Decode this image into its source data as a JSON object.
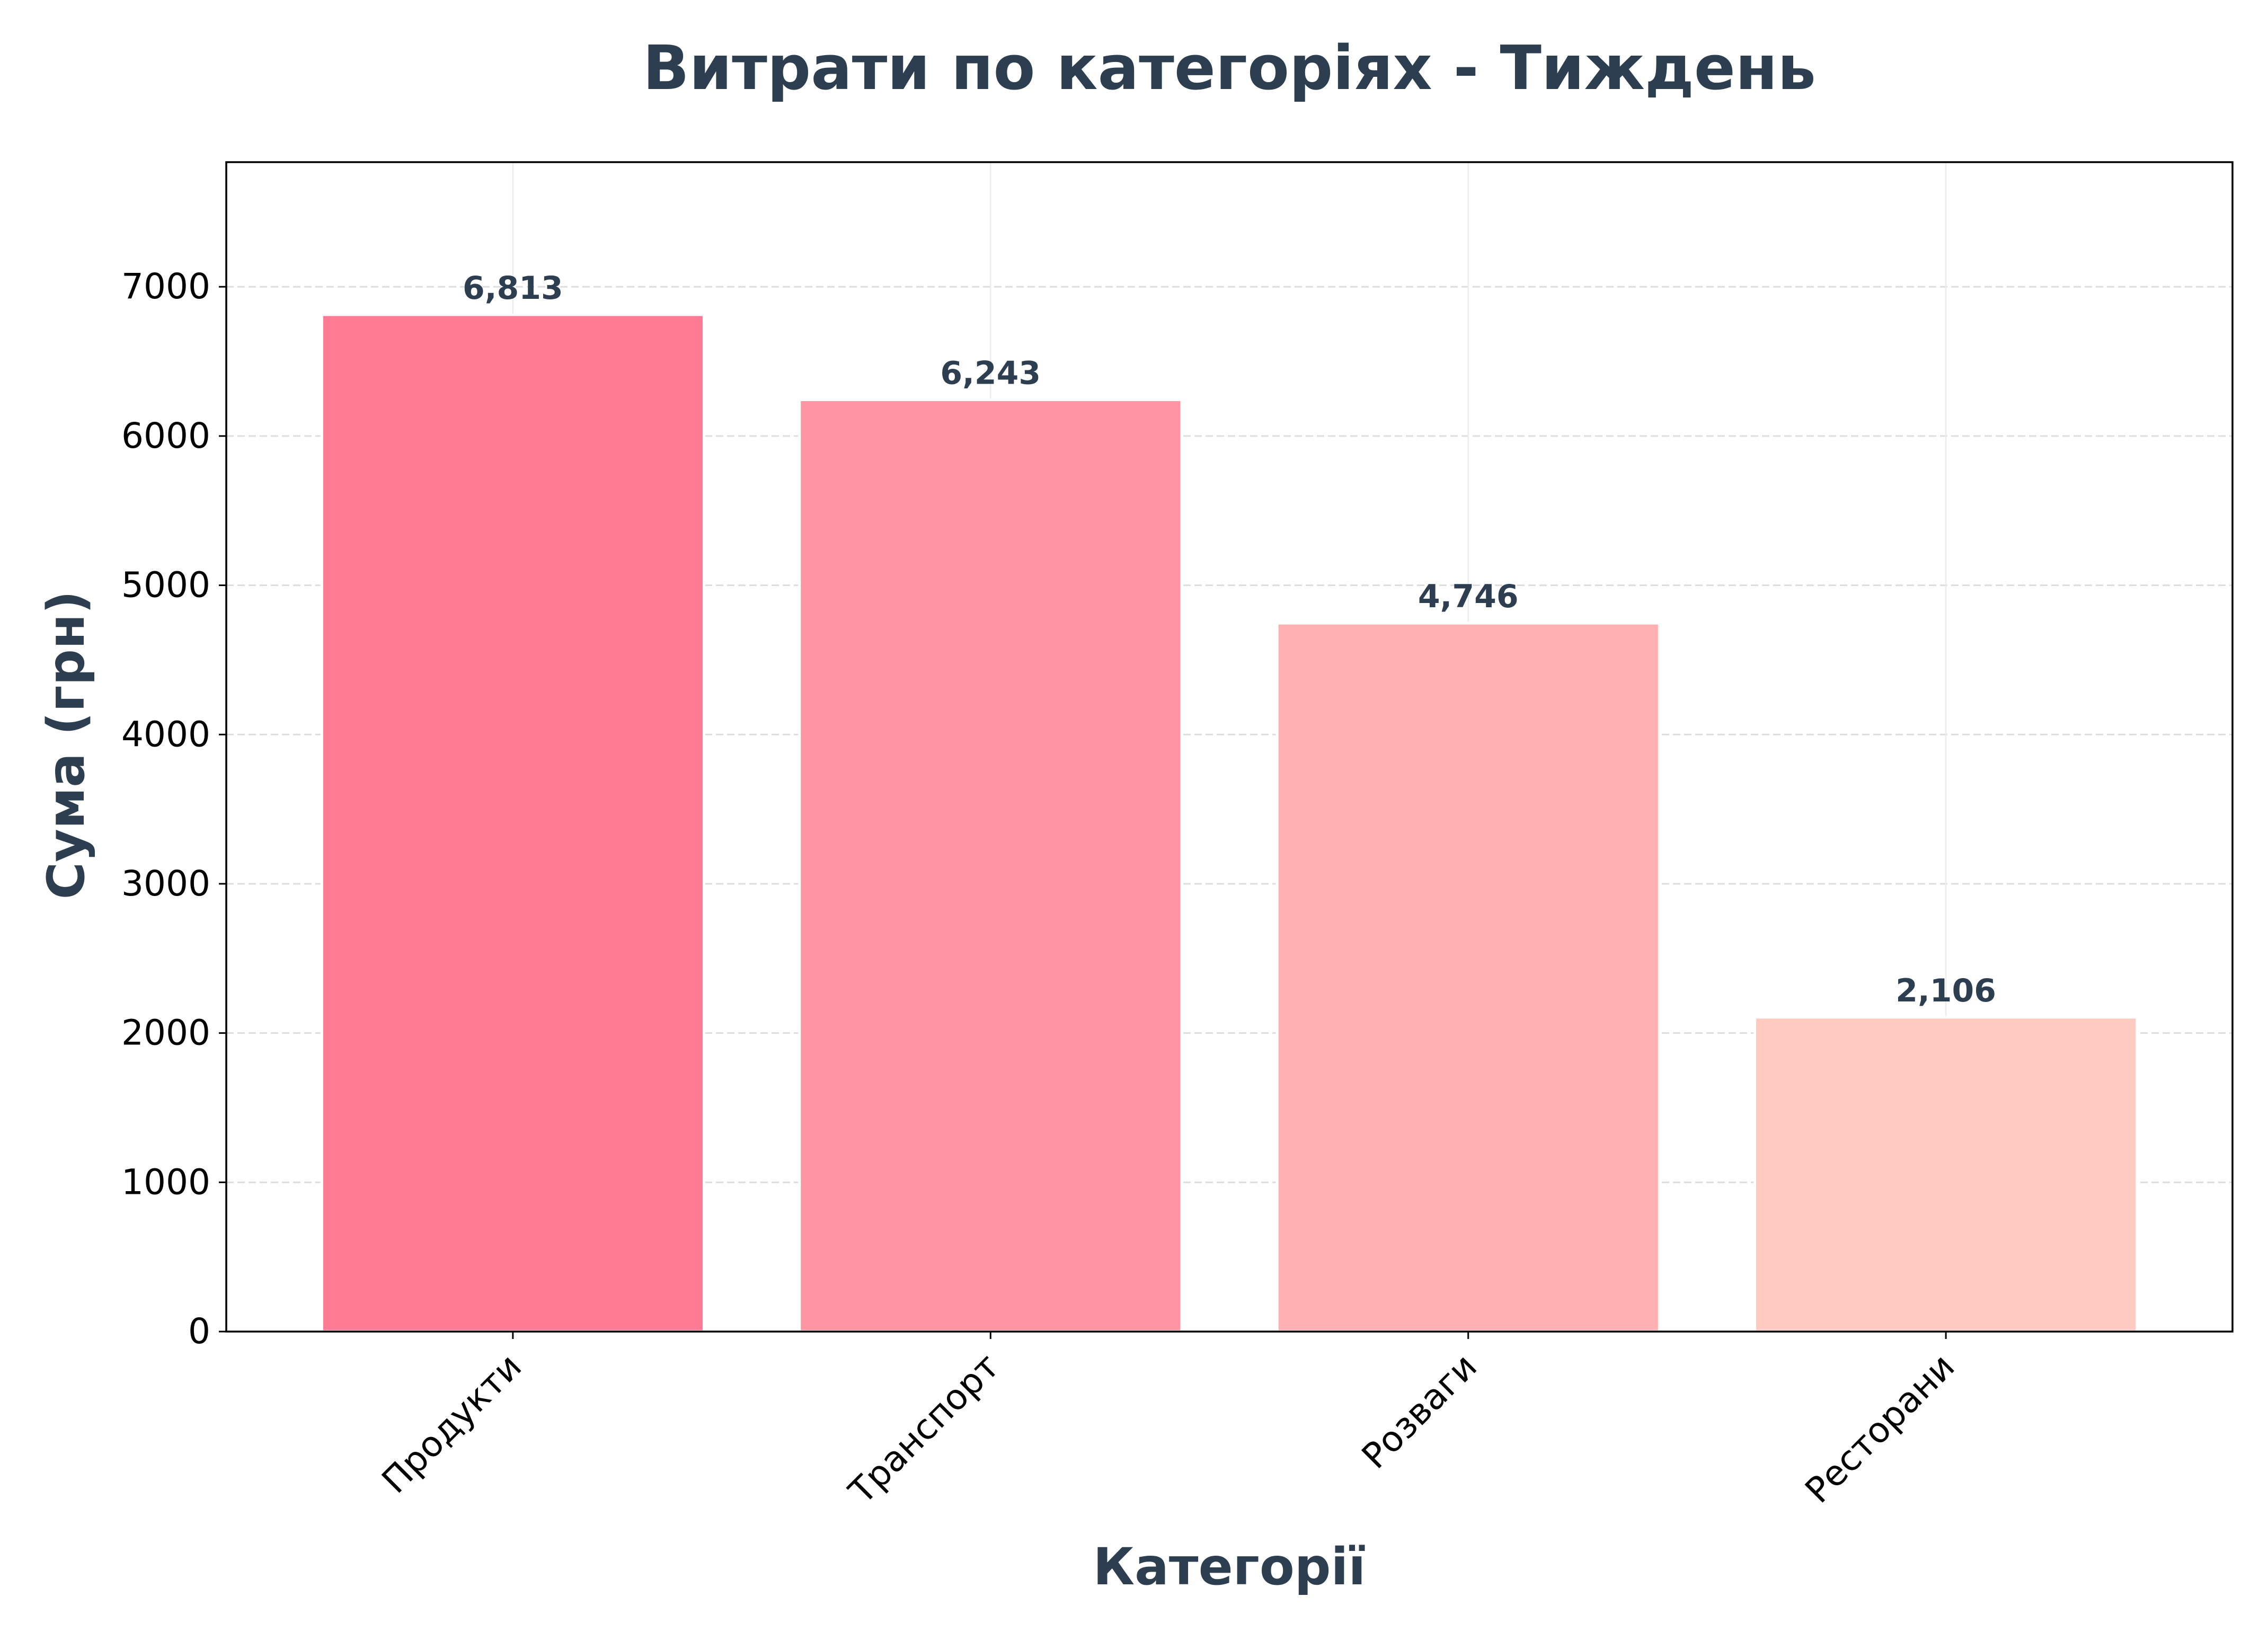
{
  "chart_data": {
    "type": "bar",
    "title": "Витрати по категоріях - Тиждень",
    "xlabel": "Категорії",
    "ylabel": "Сума (грн)",
    "categories": [
      "Продукти",
      "Транспорт",
      "Розваги",
      "Ресторани"
    ],
    "values": [
      6813,
      6243,
      4746,
      2106
    ],
    "value_labels": [
      "6,813",
      "6,243",
      "4,746",
      "2,106"
    ],
    "ylim": [
      0,
      7835
    ],
    "yticks": [
      0,
      1000,
      2000,
      3000,
      4000,
      5000,
      6000,
      7000
    ],
    "grid": true,
    "bar_colors": [
      "#ff7a93",
      "#ff95a3",
      "#ffb0b2",
      "#ffcac0"
    ],
    "text_color": "#2c3e50"
  }
}
